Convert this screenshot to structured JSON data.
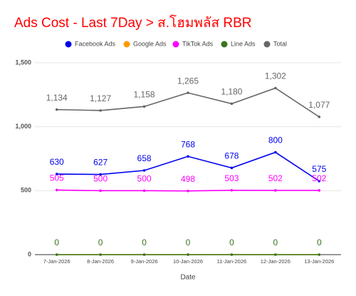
{
  "chart_data": {
    "type": "line",
    "title": "Ads Cost - Last 7Day > ส.โฮมพลัส RBR",
    "x_label": "Date",
    "categories": [
      "7-Jan-2026",
      "8-Jan-2026",
      "9-Jan-2026",
      "10-Jan-2026",
      "11-Jan-2026",
      "12-Jan-2026",
      "13-Jan-2026"
    ],
    "series": [
      {
        "name": "Facebook Ads",
        "color": "#0000ee",
        "values": [
          630,
          627,
          658,
          768,
          678,
          800,
          575
        ]
      },
      {
        "name": "Google Ads",
        "color": "#ff9900",
        "values": [
          0,
          0,
          0,
          0,
          0,
          0,
          0
        ],
        "data_labels": false
      },
      {
        "name": "TikTok Ads",
        "color": "#ff00ff",
        "values": [
          505,
          500,
          500,
          498,
          503,
          502,
          502
        ]
      },
      {
        "name": "Line Ads",
        "color": "#38761d",
        "values": [
          0,
          0,
          0,
          0,
          0,
          0,
          0
        ]
      },
      {
        "name": "Total",
        "color": "#666666",
        "values": [
          1134,
          1127,
          1158,
          1265,
          1180,
          1302,
          1077
        ],
        "value_labels": [
          "1,134",
          "1,127",
          "1,158",
          "1,265",
          "1,180",
          "1,302",
          "1,077"
        ]
      }
    ],
    "ylim": [
      0,
      1500
    ],
    "yticks": [
      0,
      500,
      {
        "value": 1000,
        "label": "1,000"
      },
      {
        "value": 1500,
        "label": "1,500"
      }
    ],
    "grid": true,
    "legend": "top"
  }
}
